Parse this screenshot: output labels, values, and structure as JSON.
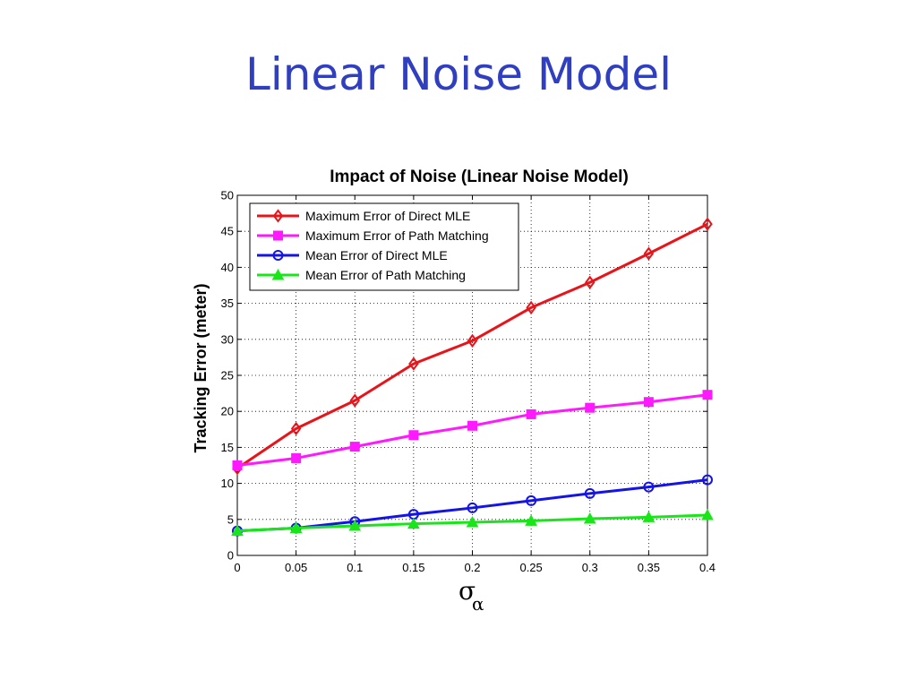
{
  "slide": {
    "title": "Linear Noise Model"
  },
  "chart_data": {
    "type": "line",
    "title": "Impact of Noise (Linear Noise Model)",
    "ylabel": "Tracking Error (meter)",
    "xlabel": "σ",
    "xlabel_subscript": "α",
    "x": [
      0,
      0.05,
      0.1,
      0.15,
      0.2,
      0.25,
      0.3,
      0.35,
      0.4
    ],
    "x_ticks": [
      "0",
      "0.05",
      "0.1",
      "0.15",
      "0.2",
      "0.25",
      "0.3",
      "0.35",
      "0.4"
    ],
    "y_ticks": [
      "0",
      "5",
      "10",
      "15",
      "20",
      "25",
      "30",
      "35",
      "40",
      "45",
      "50"
    ],
    "xlim": [
      0,
      0.4
    ],
    "ylim": [
      0,
      50
    ],
    "grid": true,
    "legend_position": "top-left",
    "series": [
      {
        "name": "Maximum Error of Direct MLE",
        "color": "#e8141a",
        "marker": "diamond",
        "values": [
          12.1,
          17.6,
          21.5,
          26.6,
          29.8,
          34.4,
          37.9,
          41.9,
          46.0
        ]
      },
      {
        "name": "Maximum Error of Path Matching",
        "color": "#ff19ff",
        "marker": "square",
        "values": [
          12.5,
          13.5,
          15.1,
          16.7,
          18.0,
          19.6,
          20.5,
          21.3,
          22.3
        ]
      },
      {
        "name": "Mean Error of Direct MLE",
        "color": "#1414e6",
        "marker": "circle",
        "values": [
          3.4,
          3.8,
          4.7,
          5.7,
          6.6,
          7.6,
          8.6,
          9.5,
          10.5
        ]
      },
      {
        "name": "Mean Error of Path Matching",
        "color": "#19e619",
        "marker": "triangle",
        "values": [
          3.4,
          3.8,
          4.1,
          4.4,
          4.6,
          4.8,
          5.1,
          5.3,
          5.6
        ]
      }
    ]
  }
}
